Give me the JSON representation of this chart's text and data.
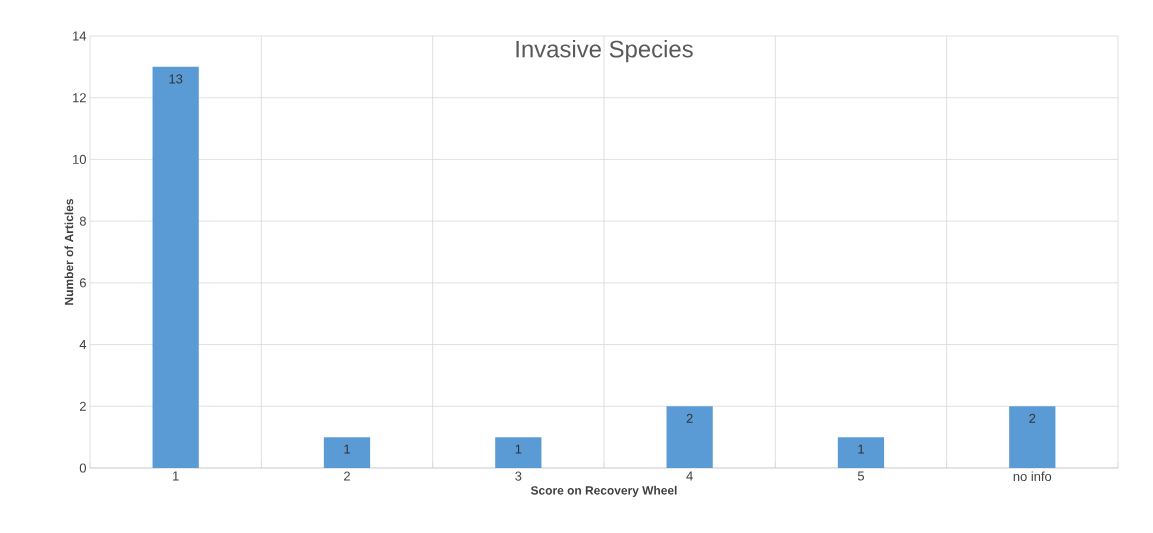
{
  "chart_data": {
    "type": "bar",
    "title": "Invasive Species",
    "xlabel": "Score on Recovery Wheel",
    "ylabel": "Number of Articles",
    "categories": [
      "1",
      "2",
      "3",
      "4",
      "5",
      "no info"
    ],
    "values": [
      13,
      1,
      1,
      2,
      1,
      2
    ],
    "color": "#5b9bd5",
    "ylim": [
      0,
      14
    ],
    "yticks": [
      0,
      2,
      4,
      6,
      8,
      10,
      12,
      14
    ],
    "grid": true,
    "data_labels": true
  }
}
